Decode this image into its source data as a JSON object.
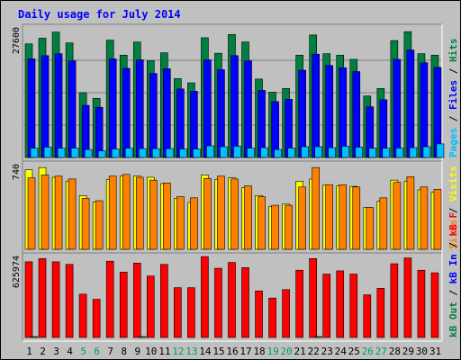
{
  "chart_data": {
    "type": "bar",
    "title": "Daily usage for July 2014",
    "categories": [
      "1",
      "2",
      "3",
      "4",
      "5",
      "6",
      "7",
      "8",
      "9",
      "10",
      "11",
      "12",
      "13",
      "14",
      "15",
      "16",
      "17",
      "18",
      "19",
      "20",
      "21",
      "22",
      "23",
      "24",
      "25",
      "26",
      "27",
      "28",
      "29",
      "30",
      "31"
    ],
    "weekend_categories": [
      "5",
      "6",
      "12",
      "13",
      "19",
      "20",
      "26",
      "27"
    ],
    "panels": [
      {
        "id": "hits-files-pages",
        "ymax_label": "27600",
        "ylim": [
          0,
          27600
        ],
        "legend": [
          {
            "name": "Hits",
            "color": "#008040"
          },
          {
            "name": "Files",
            "color": "#0000ff"
          },
          {
            "name": "Pages",
            "color": "#00c0ff"
          }
        ],
        "series": [
          {
            "name": "Hits",
            "color": "#008040",
            "values": [
              24200,
              25400,
              26700,
              24400,
              13800,
              12600,
              25000,
              21800,
              24600,
              20600,
              22300,
              16800,
              15900,
              25500,
              22200,
              26200,
              24600,
              16700,
              13900,
              14700,
              21800,
              26100,
              22100,
              21800,
              20900,
              13100,
              14700,
              24900,
              26800,
              22100,
              21800
            ]
          },
          {
            "name": "Files",
            "color": "#0000ff",
            "values": [
              21000,
              21700,
              22100,
              20600,
              11100,
              10700,
              21000,
              19000,
              20800,
              17900,
              18900,
              14600,
              14100,
              20800,
              18700,
              21700,
              20600,
              14300,
              11900,
              12400,
              18600,
              22000,
              19600,
              19100,
              18300,
              10800,
              12300,
              20900,
              22900,
              20200,
              19200
            ]
          },
          {
            "name": "Pages",
            "color": "#00c0ff",
            "values": [
              2000,
              2200,
              2000,
              2000,
              1700,
              1400,
              1800,
              2000,
              1900,
              1900,
              1900,
              1800,
              1800,
              2500,
              2300,
              2400,
              2000,
              2100,
              1700,
              2000,
              2300,
              2300,
              2100,
              2400,
              2200,
              2000,
              2000,
              2000,
              2100,
              2300,
              2900
            ]
          }
        ]
      },
      {
        "id": "visits-sites",
        "ymax_label": "740",
        "ylim": [
          0,
          740
        ],
        "legend": [
          {
            "name": "Visits",
            "color": "#ffff00"
          },
          {
            "name": "Sites",
            "color": "#ff8000"
          }
        ],
        "series": [
          {
            "name": "Visits",
            "color": "#ffff00",
            "values": [
              695,
              715,
              630,
              595,
              470,
              415,
              610,
              640,
              640,
              630,
              575,
              445,
              410,
              650,
              610,
              625,
              540,
              470,
              375,
              395,
              595,
              615,
              565,
              555,
              550,
              365,
              420,
              605,
              595,
              520,
              500
            ]
          },
          {
            "name": "Sites",
            "color": "#ff8000",
            "values": [
              625,
              650,
              640,
              615,
              445,
              425,
              640,
              655,
              630,
              605,
              580,
              460,
              450,
              620,
              640,
              615,
              555,
              460,
              385,
              385,
              545,
              715,
              565,
              565,
              545,
              365,
              450,
              585,
              635,
              545,
              525
            ]
          }
        ]
      },
      {
        "id": "kbin-kbout-kbf",
        "ymax_label": "625974",
        "ylim": [
          0,
          625974
        ],
        "legend": [
          {
            "name": "kB F",
            "color": "#ff0000"
          },
          {
            "name": "kB In",
            "color": "#0000ff"
          },
          {
            "name": "kB Out",
            "color": "#008040"
          }
        ],
        "series": [
          {
            "name": "kB F",
            "color": "#ff0000",
            "values": [
              585000,
              610000,
              585000,
              565000,
              335000,
              295000,
              590000,
              505000,
              575000,
              475000,
              565000,
              385000,
              385000,
              625000,
              535000,
              580000,
              540000,
              360000,
              305000,
              370000,
              520000,
              610000,
              490000,
              515000,
              490000,
              330000,
              380000,
              570000,
              615000,
              520000,
              500000
            ]
          },
          {
            "name": "kB In",
            "color": "#0000ff",
            "values": [
              0,
              0,
              0,
              0,
              0,
              0,
              0,
              0,
              0,
              0,
              0,
              0,
              0,
              0,
              0,
              0,
              0,
              0,
              0,
              0,
              0,
              0,
              0,
              0,
              0,
              0,
              0,
              0,
              0,
              0,
              0
            ]
          },
          {
            "name": "kB Out",
            "color": "#008040",
            "values": [
              5000,
              0,
              0,
              0,
              0,
              0,
              0,
              0,
              5000,
              0,
              0,
              0,
              0,
              0,
              0,
              0,
              0,
              0,
              0,
              0,
              0,
              5000,
              0,
              0,
              0,
              0,
              0,
              0,
              0,
              0,
              0
            ]
          }
        ]
      }
    ]
  },
  "colors": {
    "background": "#c0c0c0",
    "plot_background": "#c0c0c0",
    "title": "#0000ff",
    "axis": "#000000",
    "gridline": "#808080",
    "weekday_label": "#000000",
    "weekend_label": "#00a060"
  }
}
